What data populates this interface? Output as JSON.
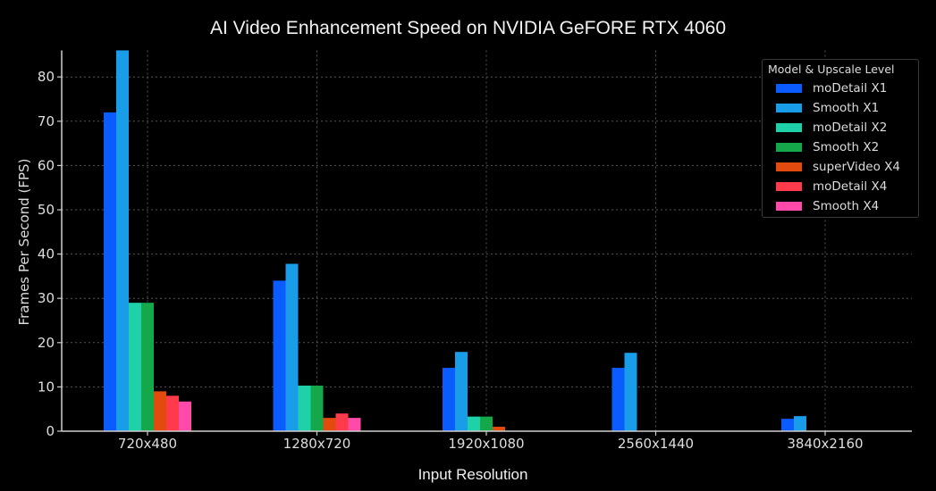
{
  "chart_data": {
    "type": "bar",
    "title": "AI Video Enhancement Speed on NVIDIA GeFORE RTX 4060",
    "xlabel": "Input Resolution",
    "ylabel": "Frames Per Second (FPS)",
    "ylim": [
      0,
      86
    ],
    "yticks": [
      0,
      10,
      20,
      30,
      40,
      50,
      60,
      70,
      80
    ],
    "grid": true,
    "legend_title": "Model & Upscale Level",
    "legend_position": "upper right",
    "categories": [
      "720x480",
      "1280x720",
      "1920x1080",
      "2560x1440",
      "3840x2160"
    ],
    "series": [
      {
        "name": "moDetail X1",
        "color": "#0a5cff",
        "values": [
          72,
          34,
          14.3,
          14.3,
          2.8
        ]
      },
      {
        "name": "Smooth X1",
        "color": "#1a9de8",
        "values": [
          86,
          37.8,
          17.9,
          17.7,
          3.4
        ]
      },
      {
        "name": "moDetail X2",
        "color": "#1fd1a8",
        "values": [
          29,
          10.3,
          3.3,
          0,
          0
        ]
      },
      {
        "name": "Smooth X2",
        "color": "#14a84a",
        "values": [
          29,
          10.3,
          3.3,
          0,
          0
        ]
      },
      {
        "name": "superVideo X4",
        "color": "#e34a0e",
        "values": [
          9,
          3,
          1,
          0,
          0
        ]
      },
      {
        "name": "moDetail X4",
        "color": "#ff3a4a",
        "values": [
          8,
          4,
          0,
          0,
          0
        ]
      },
      {
        "name": "Smooth X4",
        "color": "#ff4aaa",
        "values": [
          6.7,
          3,
          0,
          0,
          0
        ]
      }
    ]
  }
}
